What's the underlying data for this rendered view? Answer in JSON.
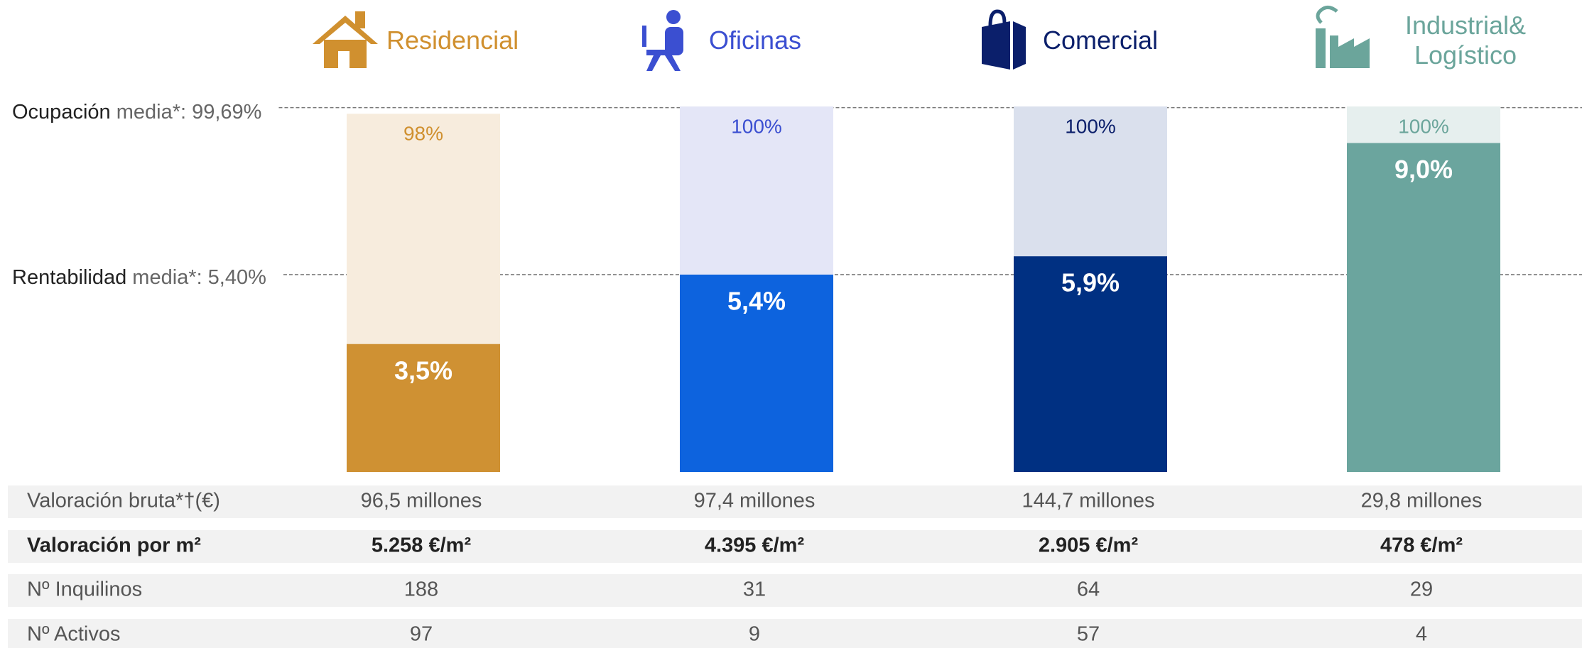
{
  "chart_data": {
    "type": "bar",
    "categories": [
      "Residencial",
      "Oficinas",
      "Comercial",
      "Industrial& Logístico"
    ],
    "category_colors": [
      "#d0902f",
      "#3b4fd1",
      "#0b1f6b",
      "#6ba59b"
    ],
    "ylim": [
      0,
      100
    ],
    "y2lim": [
      0,
      10
    ],
    "series": [
      {
        "values": [
          98,
          100,
          100,
          100
        ],
        "value_labels": [
          "98%",
          "100%",
          "100%",
          "100%"
        ],
        "colors": [
          "#f7ecdd",
          "#e4e6f7",
          "#dae0ed",
          "#e6efee"
        ]
      },
      {
        "values": [
          3.5,
          5.4,
          5.9,
          9.0
        ],
        "value_labels": [
          "3,5%",
          "5,4%",
          "5,9%",
          "9,0%"
        ],
        "colors": [
          "#cf9133",
          "#0d63de",
          "#003082",
          "#6ba59e"
        ],
        "axis": "y2"
      }
    ],
    "averages": [
      {
        "label": "Ocupación",
        "text": "media*: 99,69%",
        "value": 99.69
      },
      {
        "label": "Rentabilidad",
        "text": "media*: 5,40%",
        "value": 5.4,
        "axis": "y2"
      }
    ]
  },
  "table": {
    "rows": [
      [
        "Valoración bruta*†(€)",
        "96,5 millones",
        "97,4 millones",
        "144,7 millones",
        "29,8 millones"
      ],
      [
        "Valoración por m²",
        "5.258 €/m²",
        "4.395 €/m²",
        "2.905 €/m²",
        "478 €/m²"
      ],
      [
        "Nº Inquilinos",
        "188",
        "31",
        "64",
        "29"
      ],
      [
        "Nº Activos",
        "97",
        "9",
        "57",
        "4"
      ]
    ]
  }
}
